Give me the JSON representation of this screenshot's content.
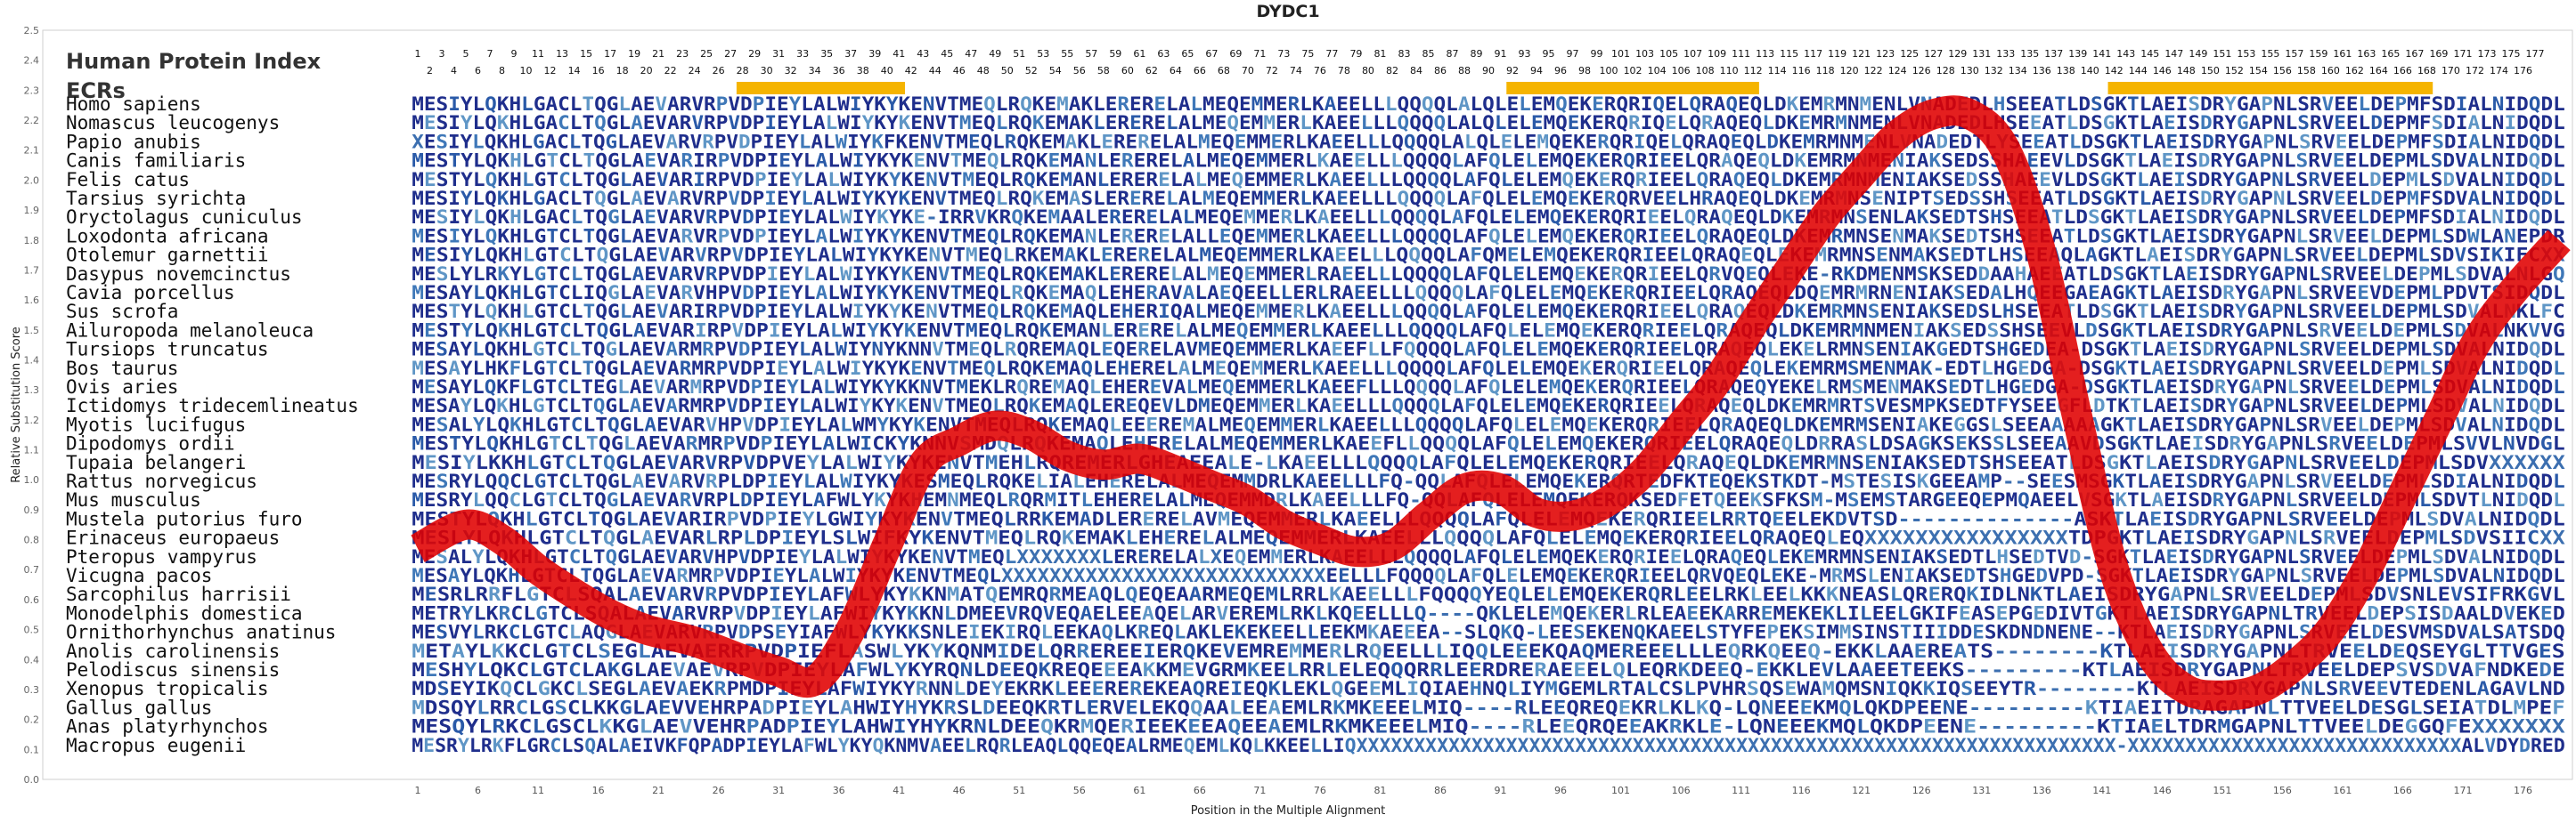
{
  "chart_data": {
    "type": "line",
    "title": "DYDC1",
    "xlabel": "Position in the Multiple Alignment",
    "ylabel": "Relative Substitution Score",
    "ylim": [
      0,
      2.5
    ],
    "y_ticks": [
      "0.0",
      "0.1",
      "0.2",
      "0.3",
      "0.4",
      "0.5",
      "0.6",
      "0.7",
      "0.8",
      "0.9",
      "1.0",
      "1.1",
      "1.2",
      "1.3",
      "1.4",
      "1.5",
      "1.6",
      "1.7",
      "1.8",
      "1.9",
      "2.0",
      "2.1",
      "2.2",
      "2.3",
      "2.4",
      "2.5"
    ],
    "x_ticks": [
      1,
      6,
      11,
      16,
      21,
      26,
      31,
      36,
      41,
      46,
      51,
      56,
      61,
      66,
      71,
      76,
      81,
      86,
      91,
      96,
      101,
      106,
      111,
      116,
      121,
      126,
      131,
      136,
      141,
      146,
      151,
      156,
      161,
      166,
      171,
      176
    ],
    "xlim": [
      1,
      179
    ],
    "human_index_label": "Human Protein Index",
    "human_index_max": 177,
    "ecr_label": "ECRs",
    "ecr_color": "#f5b400",
    "ecr_regions": [
      [
        28,
        41
      ],
      [
        92,
        112
      ],
      [
        142,
        168
      ]
    ],
    "series": [
      {
        "color": "#e00000",
        "x": [
          1,
          5,
          8,
          11,
          14,
          17,
          20,
          24,
          28,
          31,
          34,
          37,
          40,
          43,
          46,
          49,
          52,
          55,
          58,
          61,
          64,
          67,
          70,
          73,
          76,
          79,
          82,
          85,
          88,
          91,
          94,
          97,
          100,
          103,
          106,
          109,
          112,
          115,
          118,
          121,
          124,
          127,
          130,
          133,
          136,
          139,
          142,
          145,
          148,
          151,
          154,
          157,
          160,
          163,
          166,
          169,
          172,
          175,
          179
        ],
        "y": [
          0.77,
          0.85,
          0.8,
          0.7,
          0.62,
          0.55,
          0.5,
          0.46,
          0.4,
          0.36,
          0.33,
          0.5,
          0.78,
          1.05,
          1.13,
          1.18,
          1.15,
          1.08,
          1.05,
          1.07,
          1.03,
          0.98,
          0.93,
          0.85,
          0.8,
          0.76,
          0.78,
          0.88,
          0.97,
          0.97,
          0.89,
          0.88,
          0.93,
          1.03,
          1.18,
          1.33,
          1.52,
          1.7,
          1.88,
          2.02,
          2.15,
          2.22,
          2.22,
          2.1,
          1.75,
          1.2,
          0.7,
          0.42,
          0.3,
          0.28,
          0.3,
          0.38,
          0.5,
          0.7,
          0.95,
          1.2,
          1.45,
          1.62,
          1.8
        ]
      }
    ],
    "sequences": [
      {
        "name": "Homo sapiens",
        "seq": "MESIYLQKHLGACLTQGLAEVARVRPVDPIEYLALWIYKYKENVTMEQLRQKEMAKLERERELALMEQEMMERLKAEELLLQQQQLALQLELEMQEKERQRIQELQRAQEQLDKEMRMNMENLVNADEDLHSEEATLDSGKTLAEISDRYGAPNLSRVEELDEPMFSDIALNIDQDL"
      },
      {
        "name": "Nomascus leucogenys",
        "seq": "MESIYLQKHLGACLTQGLAEVARVRPVDPIEYLALWIYKYKENVTMEQLRQKEMAKLERERELALMEQEMMERLKAEELLLQQQQLALQLELEMQEKERQRIQELQRAQEQLDKEMRMNMENLVNADEDLHSEEATLDSGKTLAEISDRYGAPNLSRVEELDEPMFSDIALNIDQDL"
      },
      {
        "name": "Papio anubis",
        "seq": "XESIYLQKHLGACLTQGLAEVARVRPVDPIEYLALWIYKFKENVTMEQLRQKEMAKLERERELALMEQEMMERLKAEELLLQQQQLALQLELEMQEKERQRIQELQRAQEQLDKEMRMNMENLVNADEDTLYSEEATLDSGKTLAEISDRYGAPNLSRVEELDEPMFSDIALNIDQDL"
      },
      {
        "name": "Canis familiaris",
        "seq": "MESTYLQKHLGTCLTQGLAEVARIRPVDPIEYLALWIYKYKENVTMEQLRQKEMANLERERELALMEQEMMERLKAEELLLQQQQLAFQLELEMQEKERQRIEELQRAQEQLDKEMRMNMENIAKSEDSSHAEEVLDSGKTLAEISDRYGAPNLSRVEELDEPMLSDVALNIDQDL"
      },
      {
        "name": "Felis catus",
        "seq": "MESTYLQKHLGTCLTQGLAEVARIRPVDPIEYLALWIYKYKENVTMEQLRQKEMANLERERELALMEQEMMERLKAEELLLQQQQLAFQLELEMQEKERQRIEELQRAQEQLDKEMRMNMENIAKSEDSSHAEEVLDSGKTLAEISDRYGAPNLSRVEELDEPMLSDVALNIDQDL"
      },
      {
        "name": "Tarsius syrichta",
        "seq": "MESIYLQKHLGACLTQGLAEVARVRPVDPIEYLALWIYKYKENVTMEQLRQKEMASLERERELALMEQEMMERLKAEELLLQQQQLAFQLELEMQEKERQRVEELHRAQEQLDKEMRMNSENIPTSEDSSHSEEATLDSGKTLAEISDRYGAPNLSRVEELDEPMFSDVALNIDQDL"
      },
      {
        "name": "Oryctolagus cuniculus",
        "seq": "MESIYLQKHLGACLTQGLAEVARVRPVDPIEYLALWIYKYKE-IRRVKRQKEMAALERERELALMEQEMMERLKAEELLLQQQQLAFQLELEMQEKERQRIEELQRAQEQLDKEMRMNSENLAKSEDTSHSEEATLDSGKTLAEISDRYGAPNLSRVEELDEPMFSDIALNIDQDL"
      },
      {
        "name": "Loxodonta africana",
        "seq": "MESIYLQKHLGTCLTQGLAEVARVRPVDPIEYLALWIYKYKENVTMEQLRQKEMANLERERELALLEQEMMERLKAEELLLQQQQLAFQLELEMQEKERQRIEELQRAQEQLDKEMRMNSENMAKSEDTSHSEEATLDSGKTLAEISDRYGAPNLSRVEELDEPMLSDWLANEPDR"
      },
      {
        "name": "Otolemur garnettii",
        "seq": "MESIYLQKHLGTCLTQGLAEVARVRPVDPIEYLALWIYKYKENVTMEQLRKEMAKLERERELALMEQEMMERLKAEELLLQQQQLAFQMELEMQEKERQRIEELQRAQEQLEKEMRMNSENMAKSEDTLHSEEAQLAGKTLAEISDRYGAPNLSRVEELDEPMLSDVSIKIFCXX"
      },
      {
        "name": "Dasypus novemcinctus",
        "seq": "MESLYLRKYLGTCLTQGLAEVARVRPVDPIEYLALWIYKYKENVTMEQLRQKEMAKLERERELALMEQEMMERLRAEELLLQQQQLAFQLELEMQEKERQRIEELQRVQEQLEKE-RKDMENMSKSEDDAAHAEEATLDSGKTLAEISDRYGAPNLSRVEELDEPMLSDVALNLGQ"
      },
      {
        "name": "Cavia porcellus",
        "seq": "MESAYLQKHLGTCLIQGLAEVARVHPVDPIEYLALWIYKYKENVTMEQLRQKEMAQLEHERAVALAEQEELLERLRAEELLLQQQQLAFQLELEMQEKERQRIEELQRAQEQLDQEMRMRNENIAKSEDALHQEEGAEAGKTLAEISDRYGAPNLSRVEEVDEPMLPDVTSIDQDL"
      },
      {
        "name": "Sus scrofa",
        "seq": "MESTYLQKHLGTCLTQGLAEVARIRPVDPIEYLALWIYKYKENVTMEQLRQKEMAQLEHERIQALMEQEMMERLKAEELLLQQQQLAFQLELEMQEKERQRIEELQRAQEQLDKEMRMNSENIAKSEDSLHSEEATLDSGKTLAEISDRYGAPNLSRVEELDEPMLSDVALNKLFC"
      },
      {
        "name": "Ailuropoda melanoleuca",
        "seq": "MESTYLQKHLGTCLTQGLAEVARIRPVDPIEYLALWIYKYKENVTMEQLRQKEMANLERERELALMEQEMMERLKAEELLLQQQQLAFQLELEMQEKERQRIEELQRAQEQLDKEMRMNMENIAKSEDSSHSEEVLDSGKTLAEISDRYGAPNLSRVEELDEPMLSDVALNKVVG"
      },
      {
        "name": "Tursiops truncatus",
        "seq": "MESAYLQKHLGTCLTQGLAEVARMRPVDPIEYLALWIYNYKNNVTMEQLRQREMAQLEQERELAVMEQEMMERLKAEEFLLFQQQQLAFQLELEMQEKERQRIEELQRAQEQLEKELRMNSENIAKGEDTSHGEDEA-DSGKTLAEISDRYGAPNLSRVEELDEPMLSDVALNIDQDL"
      },
      {
        "name": "Bos taurus",
        "seq": "MESAYLHKFLGTCLTQGLAEVARMRPVDPIEYLALWIYKYKENVTMEQLRQKEMAQLEHERELALMEQEMMERLKAEELLLQQQQLAFQLELEMQEKERQRIEELQRAQEQLEKEMRMSMENMAK-EDTLHGEDGA-DSGKTLAEISDRYGAPNLSRVEELDEPMLSDVALNIDQDL"
      },
      {
        "name": "Ovis aries",
        "seq": "MESAYLQKFLGTCLTEGLAEVARMRPVDPIEYLALWIYKYKKNVTMEKLRQREMAQLEHEREVALMEQEMMERLKAEEFLLLQQQQLAFQLELEMQEKERQRIEELQRAQEQYEKELRMSMENMAKSEDTLHGEDGA-DSGKTLAEISDRYGAPNLSRVEELDEPMLSDVALNIDQDL"
      },
      {
        "name": "Ictidomys tridecemlineatus",
        "seq": "MESAYLQKHLGTCLTQGLAEVARMRPVDPIEYLALWIYKYKENVTMEQLRQKEMAQLEREQEVLDMEQEMMERLKAEELLLQQQQLAFQLELEMQEKERQRIEELQRAQEQLDKEMRMRTSVESMPKSEDTFYSEEGFLDTKTLAEISDRYGAPNLSRVEELDEPMLSDVALNIDQDL"
      },
      {
        "name": "Myotis lucifugus",
        "seq": "MESALYLQKHLGTCLTQGLAEVARVHPVDPIEYLALWMYKYKENVTMEQLRQKEMAQLEEEREMALMEQEMMERLKAEELLLQQQQLAFQLELEMQEKERQRIEELQRAQEQLDKEMRMSENIAKEGGSLSEEAAAAAGKTLAEISDRYGAPNLSRVEELDEPMLSDVALNIDQDL"
      },
      {
        "name": "Dipodomys ordii",
        "seq": "MESTYLQKHLGTCLTQGLAEVARMRPVDPIEYLALWICKYKNNVSMDQLRQKEMAQLEHERELALMEQEMMERLKAEEFLLQQQQLAFQLELEMQEKERQRIEELQRAQEQLDRRASLDSAGKSEKSSLSEEAAVDSGKTLAEISDRYGAPNLSRVEELDEPMLSVVLNVDGL"
      },
      {
        "name": "Tupaia belangeri",
        "seq": "MESIYLKKHLGTCLTQGLAEVARVRPVDPVEYLALWIYKYKENVTMEHLRQREMERLGHEAEEALE-LKAEELLLQQQQLAFQLELEMQEKERQRIEELQRAQEQLDKEMRMNSENIAKSEDTSHSEEATLDSGKTLAEISDRYGAPNLSRVEELDEPMLSDVXXXXXX"
      },
      {
        "name": "Rattus norvegicus",
        "seq": "MESRYLQQCLGTCLTQGLAEVARVRPLDPIEYLALWIYKYKESMEQLRQKELIALEHERELALMEQEMMDRLKAEELLLFQ-QQLAFQLELEMQEKERQRTEDFKTEQEKSTKDT-MSTESISKGEEAMP--SEESMSGKTLAEISDRYGAPNLSRVEELDEPMLSDIALNIDQDL"
      },
      {
        "name": "Mus musculus",
        "seq": "MESRYLQQCLGTCLTQGLAEVARVRPLDPIEYLAFWLYKYKHEMNMEQLRQRMITLEHERELALMEQEMMDRLKAEELLLFQ-QQLAFQLELEMQEKERQKSEDFETQEEKSFKSM-MSEMSTARGEEQEPMQAEELVSGKTLAEISDRYGAPNLSRVEELDEPMLSDVTLNIDQDL"
      },
      {
        "name": "Mustela putorius furo",
        "seq": "MESTYLQKHLGTCLTQGLAEVARIRPVDPIEYLGWIYKYKENVTMEQLRRKEMADLERERELAVMEQEMMERLKAEELLLQQQQLAFQLELEMQEKERQRIEELRRTQEELEKDVTSD--------------ASKTLAEISDRYGAPNLSRVEELDEPMLSDVALNIDQDL"
      },
      {
        "name": "Erinaceus europaeus",
        "seq": "MESLYLQKHLGTCLTQGLAEVARLRPLDPIEYLSLWIFKYKENVTMEQLRQKEMAKLEHERELALMEQEMMERLKAEELLLQQQQLAFQLELEMQEKERQRIEELQRAQEQLEQXXXXXXXXXXXXXXXXTDPGKTLAEISDRYGAPNLSRVEELDEPMLSDVSIICXX"
      },
      {
        "name": "Pteropus vampyrus",
        "seq": "MESALYLQKHLGTCLTQGLAEVARVHPVDPIEYLALWIYKYKENVTMEQLXXXXXXXLERERELALXEQEMMERLKAEELLLQQQQLAFQLELEMQEKERQRIEELQRAQEQLEKEMRMNSENIAKSEDTLHSEDTVD-SGKTLAEISDRYGAPNLSRVEELDEPMLSDVALNIDQDL"
      },
      {
        "name": "Vicugna pacos",
        "seq": "MESAYLQKHLGTCLTQGLAEVARMRPVDPIEYLALWIYKYKENVTMEQLXXXXXXXXXXXXXXXXXXXXXXXXXXXEELLLFQQQQLAFQLELEMQEKERQRIEELQRVQEQLEKE-MRMSLENIAKSEDTSHGEDVPD-SGKTLAEISDRYGAPNLSRVEELDEPMLSDVALNIDQDL"
      },
      {
        "name": "Sarcophilus harrisii",
        "seq": "MESRLRRFLGTCLSQALAEVARVRPVDPIEYLAFWLYKYKKNMATQEMRQRMEAQLQEQEAARMEQEMLRRLKAEELLLFQQQQYEQLELEMQEKERQRLEELRKLEELKKKNEASLQRERQKIDLNKTLAEISDRYGAPNLSRVEELDEPMLSDVSNLEVSIFRKGVL"
      },
      {
        "name": "Monodelphis domestica",
        "seq": "METRYLKRCLGTCLSQALAEVARVRPVDPIEYLAFWIYKYKKNLDMEEVRQVEQAELEEAQELARVEREMLRKLKQEELLLQ----QKLELEMQEKERLRLEAEEKARREMEKEKLILEELGKIFEASEPGEDIVTGKTLAEISDRYGAPNLTRVEELDEPSISDAALDVEKED"
      },
      {
        "name": "Ornithorhynchus anatinus",
        "seq": "MESVYLRKCLGTCLAQGLAEVARVRPVDPSEYIAFWLYKYKKSNLEIEKIRQLEEKAQLKREQLAKLEKEKEELLEEKMKAEEEA--SLQKQ-LEESEKENQKAEELSTYFEPEKSIMMSINSTIIIDDESKDNDNENE--KTLAEISDRYGAPNLSRVEELDESVMSDVALSATSDQ"
      },
      {
        "name": "Anolis carolinensis",
        "seq": "METAYLKKCLGTCLSEGLAEVAERRPVDPIEFLASWLYKYKQNMIDELQRREREEIERQKEVEMREMMERLRQEELLLIQQLEEEKQAQMEREEELLLEQRKQEEQ-EKKLAAEREATS--------KTLAEISDRYGAPNLTRVEELDEQSEYGLTTVGES"
      },
      {
        "name": "Pelodiscus sinensis",
        "seq": "MESHYLQKCLGTCLAKGLAEVAEVRPVDPIEYLAFWLYKYRQNLDEEQKREQEEEAKKMEVGRMKEELRRLELEQQQRRLEERDRERAEEELQLEQRKDEEQ-EKKLEVLAAEETEEKS---------KTLAEISDRYGAPNLTRVEELDEPSVSDVAFNDKEDE"
      },
      {
        "name": "Xenopus tropicalis",
        "seq": "MDSEYIKQCLGKCLSEGLAEVAEKRPMDPIEYLAFWIYKYRNNLDEYEKRKLEEEREREKEAQREIEQKLEKLQGEEMLIQIAEHNQLIYMGEMLRTALCSLPVHRSQSEWAMQMSNIQKKIQSEEYTR--------KTLAEISDRYGAPNLSRVEEVTEDENLAGAVLND"
      },
      {
        "name": "Gallus gallus",
        "seq": "MDSQYLRRCLGSCLKKGLAEVVEHRPADPIEYLAHWIYHYKRSLDEEQKRTLERVELEKQQAALEEAEMLRKMKEEELMIQ----RLEEQREQEKRLKLKQ-LQNEEEKMQLQKDPEENE---------KTIAEITDRAGAPNLTTVEELDESGLSEIATDLMPEF"
      },
      {
        "name": "Anas platyrhynchos",
        "seq": "MESQYLRKCLGSCLKKGLAEVVEHRPADPIEYLAHWIYHYKRNLDEEQKRMQERIEEKEEAQEEAEMLRKMKEEELMIQ----RLEEQRQEEAKRKLE-LQNEEEKMQLQKDPEENE---------KTIAELTDRMGAPNLTTVEELDEGGQFEXXXXXXX"
      },
      {
        "name": "Macropus eugenii",
        "seq": "MESRYLRKFLGRCLSQALAEIVKFQPADPIEYLAFWLYKYQKNMVAEELRQRLEAQLQQEQEALRMEQEMLKQLKKEELLIQXXXXXXXXXXXXXXXXXXXXXXXXXXXXXXXXXXXXXXXXXXXXXXXXXXXXXXXXXXXXXXXXXX-XXXXXXXXXXXXXXXXXXXXXXXXXXXXXALVDYDRED"
      }
    ]
  }
}
